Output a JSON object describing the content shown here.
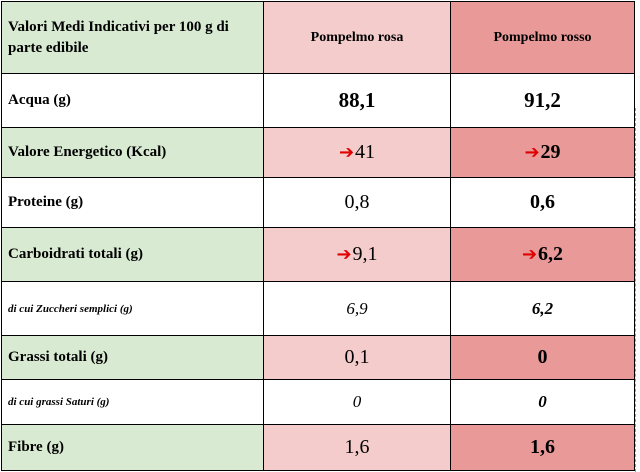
{
  "table": {
    "header": {
      "label": "Valori Medi Indicativi per 100 g di parte edibile",
      "col_rosa": "Pompelmo rosa",
      "col_rosso": "Pompelmo rosso"
    },
    "rows": [
      {
        "label": "Acqua (g)",
        "rosa": "88,1",
        "rosso": "91,2"
      },
      {
        "label": "Valore Energetico (Kcal)",
        "rosa": "41",
        "rosso": "29",
        "arrow": "➔"
      },
      {
        "label": "Proteine (g)",
        "rosa": "0,8",
        "rosso": "0,6"
      },
      {
        "label": "Carboidrati totali (g)",
        "rosa": "9,1",
        "rosso": "6,2",
        "arrow": "➔"
      },
      {
        "label": "di cui Zuccheri semplici (g)",
        "rosa": "6,9",
        "rosso": "6,2"
      },
      {
        "label": "Grassi totali (g)",
        "rosa": "0,1",
        "rosso": "0"
      },
      {
        "label": "di cui grassi Saturi (g)",
        "rosa": "0",
        "rosso": "0"
      },
      {
        "label": "Fibre (g)",
        "rosa": "1,6",
        "rosso": "1,6"
      }
    ]
  },
  "colors": {
    "label_bg": "#d9ead3",
    "rosa_bg": "#f4cccc",
    "rosso_bg": "#ea9999",
    "arrow": "#e00000"
  }
}
